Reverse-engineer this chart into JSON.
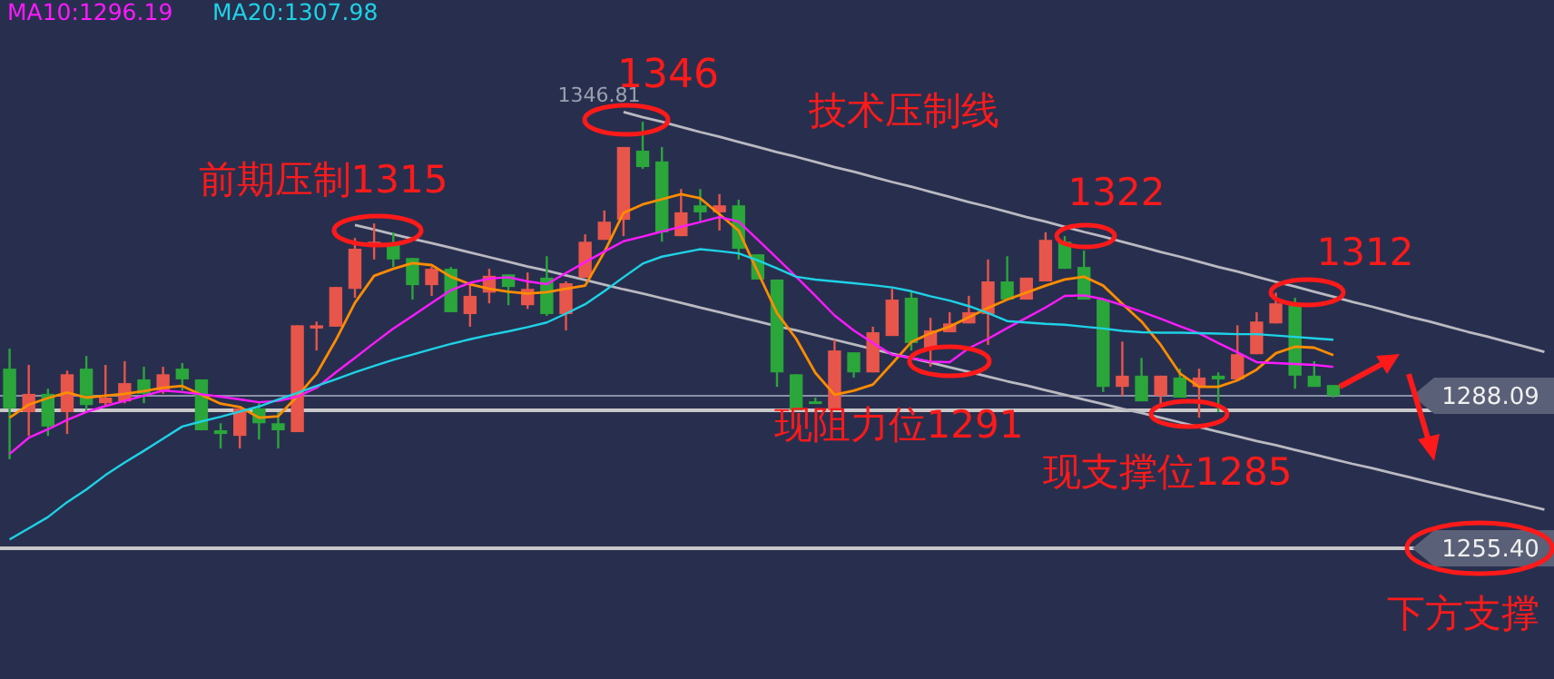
{
  "chart_data": {
    "type": "candlestick",
    "categories": [
      null,
      null,
      null,
      null,
      null,
      null,
      null,
      null,
      null,
      null,
      null,
      null,
      null,
      null,
      null,
      null,
      null,
      null,
      null,
      null,
      null,
      null,
      null,
      null,
      null,
      null,
      null,
      null,
      null,
      null,
      null,
      null,
      null,
      null,
      null,
      null,
      null,
      null,
      null,
      null,
      null,
      null,
      null,
      null,
      null,
      null,
      null,
      null,
      null,
      null,
      null,
      null,
      null,
      null,
      null,
      null,
      null,
      null,
      null,
      null,
      null,
      null,
      null,
      null,
      null,
      null,
      null,
      null,
      null,
      null,
      null,
      null,
      null,
      null,
      null,
      null,
      null,
      null,
      null,
      null,
      null
    ],
    "ohlc": [
      [
        1293.9,
        1298.2,
        1274.5,
        1285.4
      ],
      [
        1284.6,
        1294.7,
        1279.5,
        1288.5
      ],
      [
        1288.5,
        1289.6,
        1279.5,
        1281.5
      ],
      [
        1284.6,
        1293.5,
        1279.9,
        1292.7
      ],
      [
        1293.9,
        1296.6,
        1284.6,
        1286.1
      ],
      [
        1286.5,
        1294.7,
        1286.1,
        1287.7
      ],
      [
        1286.9,
        1295.5,
        1286.5,
        1290.8
      ],
      [
        1291.6,
        1294.3,
        1286.5,
        1288.5
      ],
      [
        1289.2,
        1294.3,
        1288.5,
        1292.7
      ],
      [
        1293.9,
        1295.1,
        1289.2,
        1291.6
      ],
      [
        1291.6,
        1291.6,
        1280.7,
        1280.7
      ],
      [
        1280.7,
        1282.2,
        1276.8,
        1279.9
      ],
      [
        1279.5,
        1285.4,
        1276.8,
        1285.4
      ],
      [
        1285.4,
        1286.5,
        1278.7,
        1282.2
      ],
      [
        1282.2,
        1284.6,
        1276.8,
        1280.7
      ],
      [
        1280.3,
        1303.2,
        1280.3,
        1303.2
      ],
      [
        1302.5,
        1304.0,
        1297.8,
        1303.2
      ],
      [
        1302.9,
        1311.4,
        1302.9,
        1311.4
      ],
      [
        1311.0,
        1321.9,
        1309.1,
        1319.6
      ],
      [
        1320.0,
        1325.0,
        1317.3,
        1321.1
      ],
      [
        1320.4,
        1323.1,
        1315.7,
        1317.3
      ],
      [
        1317.6,
        1317.6,
        1308.7,
        1311.8
      ],
      [
        1311.8,
        1315.7,
        1309.5,
        1315.3
      ],
      [
        1315.3,
        1315.7,
        1306.0,
        1306.0
      ],
      [
        1305.6,
        1311.8,
        1302.9,
        1309.5
      ],
      [
        1310.2,
        1315.3,
        1307.9,
        1313.8
      ],
      [
        1314.1,
        1314.1,
        1307.5,
        1311.4
      ],
      [
        1307.5,
        1314.5,
        1306.7,
        1311.0
      ],
      [
        1313.4,
        1318.0,
        1305.2,
        1305.6
      ],
      [
        1305.6,
        1312.6,
        1302.1,
        1312.2
      ],
      [
        1313.4,
        1322.7,
        1313.4,
        1321.1
      ],
      [
        1321.5,
        1327.8,
        1321.5,
        1325.4
      ],
      [
        1325.8,
        1341.4,
        1322.3,
        1341.4
      ],
      [
        1340.6,
        1346.81,
        1336.7,
        1337.1
      ],
      [
        1338.3,
        1341.4,
        1321.1,
        1323.1
      ],
      [
        1322.3,
        1332.4,
        1322.3,
        1327.4
      ],
      [
        1328.9,
        1332.4,
        1325.4,
        1327.4
      ],
      [
        1327.4,
        1331.3,
        1323.5,
        1328.9
      ],
      [
        1328.9,
        1330.1,
        1317.3,
        1319.6
      ],
      [
        1318.4,
        1318.4,
        1313.0,
        1313.0
      ],
      [
        1313.0,
        1313.0,
        1290.0,
        1293.1
      ],
      [
        1292.7,
        1292.7,
        1285.0,
        1285.0
      ],
      [
        1286.9,
        1287.7,
        1286.5,
        1286.5
      ],
      [
        1285.0,
        1300.1,
        1285.0,
        1297.8
      ],
      [
        1297.4,
        1297.4,
        1292.0,
        1293.1
      ],
      [
        1293.1,
        1302.9,
        1293.1,
        1301.7
      ],
      [
        1300.9,
        1311.0,
        1300.9,
        1308.7
      ],
      [
        1309.1,
        1310.6,
        1297.8,
        1299.4
      ],
      [
        1298.2,
        1304.8,
        1294.3,
        1302.1
      ],
      [
        1301.7,
        1306.0,
        1301.7,
        1303.6
      ],
      [
        1303.6,
        1309.5,
        1303.6,
        1306.0
      ],
      [
        1305.6,
        1317.3,
        1299.0,
        1312.6
      ],
      [
        1312.6,
        1318.0,
        1308.7,
        1308.7
      ],
      [
        1308.7,
        1313.4,
        1308.7,
        1313.4
      ],
      [
        1312.6,
        1323.1,
        1312.6,
        1321.5
      ],
      [
        1321.1,
        1322.3,
        1315.3,
        1315.3
      ],
      [
        1315.7,
        1319.2,
        1308.7,
        1308.7
      ],
      [
        1308.7,
        1308.7,
        1288.9,
        1290.0
      ],
      [
        1290.0,
        1299.7,
        1288.1,
        1292.4
      ],
      [
        1292.4,
        1296.2,
        1286.9,
        1286.9
      ],
      [
        1288.1,
        1292.4,
        1286.1,
        1292.4
      ],
      [
        1292.0,
        1293.9,
        1287.7,
        1287.7
      ],
      [
        1290.0,
        1293.9,
        1283.4,
        1292.0
      ],
      [
        1292.4,
        1293.1,
        1284.6,
        1291.6
      ],
      [
        1291.6,
        1303.2,
        1291.6,
        1297.0
      ],
      [
        1297.0,
        1306.0,
        1297.0,
        1304.0
      ],
      [
        1303.6,
        1310.2,
        1303.6,
        1307.9
      ],
      [
        1307.9,
        1309.1,
        1289.6,
        1292.4
      ],
      [
        1292.4,
        1295.5,
        1290.0,
        1290.0
      ],
      [
        1290.4,
        1290.4,
        1287.7,
        1288.1
      ],
      null,
      null,
      null,
      null,
      null,
      null,
      null,
      null,
      null,
      null,
      null
    ],
    "colors": [
      "#2aa63a",
      "#e8554b",
      "#2aa63a",
      "#e8554b",
      "#2aa63a",
      "#e8554b",
      "#e8554b",
      "#2aa63a",
      "#e8554b",
      "#2aa63a",
      "#2aa63a",
      "#2aa63a",
      "#e8554b",
      "#2aa63a",
      "#2aa63a",
      "#e8554b",
      "#e8554b",
      "#e8554b",
      "#e8554b",
      "#e8554b",
      "#2aa63a",
      "#2aa63a",
      "#e8554b",
      "#2aa63a",
      "#e8554b",
      "#e8554b",
      "#2aa63a",
      "#e8554b",
      "#2aa63a",
      "#e8554b",
      "#e8554b",
      "#e8554b",
      "#e8554b",
      "#2aa63a",
      "#2aa63a",
      "#e8554b",
      "#2aa63a",
      "#e8554b",
      "#2aa63a",
      "#2aa63a",
      "#2aa63a",
      "#2aa63a",
      "#2aa63a",
      "#e8554b",
      "#2aa63a",
      "#e8554b",
      "#e8554b",
      "#2aa63a",
      "#e8554b",
      "#e8554b",
      "#e8554b",
      "#e8554b",
      "#2aa63a",
      "#e8554b",
      "#e8554b",
      "#2aa63a",
      "#2aa63a",
      "#2aa63a",
      "#e8554b",
      "#2aa63a",
      "#e8554b",
      "#2aa63a",
      "#e8554b",
      "#2aa63a",
      "#e8554b",
      "#e8554b",
      "#e8554b",
      "#2aa63a",
      "#2aa63a",
      "#2aa63a",
      null,
      null,
      null,
      null,
      null,
      null,
      null,
      null,
      null,
      null,
      null
    ],
    "series": [
      {
        "type": "line",
        "color": "#ff8c00",
        "values": [
          1283.4,
          1286.2,
          1287.6,
          1288.8,
          1287.7,
          1288.1,
          1288.5,
          1289.1,
          1289.8,
          1290.2,
          1288.3,
          1286.4,
          1285.7,
          1283.4,
          1283.7,
          1288.0,
          1292.8,
          1300.0,
          1308.0,
          1313.8,
          1315.3,
          1316.5,
          1316.1,
          1313.6,
          1312.0,
          1311.0,
          1310.4,
          1310.0,
          1310.3,
          1311.0,
          1311.7,
          1318.9,
          1327.3,
          1329.1,
          1330.2,
          1331.3,
          1330.4,
          1327.0,
          1323.5,
          1314.6,
          1305.8,
          1300.3,
          1293.0,
          1288.3,
          1289.2,
          1290.5,
          1295.0,
          1299.6,
          1301.5,
          1302.9,
          1304.9,
          1306.9,
          1308.7,
          1310.2,
          1311.7,
          1313.0,
          1313.6,
          1311.7,
          1307.8,
          1304.0,
          1299.0,
          1292.9,
          1290.0,
          1290.0,
          1291.4,
          1293.7,
          1297.2,
          1298.6,
          1298.4,
          1296.8,
          null,
          null,
          null,
          null,
          null,
          null,
          null,
          null,
          null,
          null,
          null
        ]
      },
      {
        "type": "line",
        "name": "MA10:1296.19",
        "color": "#ff1aff",
        "values": [
          1275.6,
          1279.1,
          1280.9,
          1282.9,
          1284.6,
          1285.9,
          1287.0,
          1288.1,
          1289.2,
          1288.9,
          1288.4,
          1287.9,
          1287.3,
          1286.7,
          1287.0,
          1287.9,
          1289.8,
          1293.1,
          1296.2,
          1299.4,
          1302.5,
          1305.2,
          1308.0,
          1310.7,
          1312.3,
          1313.2,
          1313.5,
          1312.6,
          1312.0,
          1314.4,
          1316.7,
          1319.0,
          1321.2,
          1322.2,
          1323.3,
          1324.3,
          1325.3,
          1326.4,
          1325.4,
          1321.5,
          1317.6,
          1313.6,
          1309.5,
          1305.3,
          1302.1,
          1299.4,
          1296.9,
          1296.2,
          1295.4,
          1295.3,
          1298.3,
          1300.3,
          1302.6,
          1304.8,
          1307.0,
          1309.5,
          1309.6,
          1308.8,
          1307.5,
          1306.1,
          1304.6,
          1303.0,
          1301.5,
          1299.4,
          1297.4,
          1295.3,
          1295.1,
          1294.9,
          1294.7,
          1294.3,
          null,
          null,
          null,
          null,
          null,
          null,
          null,
          null,
          null,
          null,
          null
        ]
      },
      {
        "type": "line",
        "name": "MA20:1307.98",
        "color": "#1ed2e6",
        "values": [
          1257.3,
          1259.7,
          1262.1,
          1265.3,
          1268.0,
          1271.1,
          1273.8,
          1276.3,
          1278.9,
          1281.5,
          1282.6,
          1283.6,
          1284.7,
          1285.8,
          1287.3,
          1288.7,
          1290.2,
          1291.6,
          1293.1,
          1294.5,
          1295.8,
          1296.9,
          1298.1,
          1299.2,
          1300.2,
          1301.1,
          1301.9,
          1302.8,
          1303.8,
          1305.7,
          1307.7,
          1310.5,
          1313.5,
          1316.4,
          1317.9,
          1318.7,
          1319.5,
          1319.1,
          1318.6,
          1317.1,
          1315.4,
          1313.6,
          1313.0,
          1312.6,
          1312.2,
          1311.8,
          1311.3,
          1310.5,
          1309.4,
          1308.5,
          1307.3,
          1305.8,
          1304.1,
          1303.8,
          1303.5,
          1303.3,
          1302.9,
          1302.5,
          1302.0,
          1301.7,
          1301.6,
          1301.6,
          1301.5,
          1301.4,
          1301.3,
          1301.3,
          1301.0,
          1300.7,
          1300.4,
          1300.1,
          null,
          null,
          null,
          null,
          null,
          null,
          null,
          null,
          null,
          null,
          null
        ]
      },
      {
        "type": "line",
        "color": "#b9b9c0",
        "values": [
          null,
          null,
          null,
          null,
          null,
          null,
          null,
          null,
          null,
          null,
          null,
          null,
          null,
          null,
          null,
          null,
          null,
          null,
          null,
          null,
          null,
          null,
          null,
          null,
          null,
          null,
          null,
          null,
          null,
          null,
          null,
          null,
          1348.9,
          1347.8,
          1346.8,
          1345.7,
          1344.6,
          1343.6,
          1342.5,
          1341.4,
          1340.3,
          1339.3,
          1338.2,
          1337.1,
          1336.1,
          1335.0,
          1333.9,
          1332.9,
          1331.8,
          1330.7,
          1329.6,
          1328.6,
          1327.5,
          1326.4,
          1325.4,
          1324.3,
          1323.2,
          1322.2,
          1321.1,
          1320.0,
          1318.9,
          1317.9,
          1316.8,
          1315.7,
          1314.7,
          1313.6,
          1312.5,
          1311.5,
          1310.4,
          1309.3,
          1308.2,
          1307.2,
          1306.1,
          1305.0,
          1304.0,
          1302.9,
          1301.8,
          1300.8,
          1299.7,
          1298.6,
          1297.5
        ]
      },
      {
        "type": "line",
        "color": "#b9b9c0",
        "values": [
          null,
          null,
          null,
          null,
          null,
          null,
          null,
          null,
          null,
          null,
          null,
          null,
          null,
          null,
          null,
          null,
          null,
          null,
          1324.7,
          1323.7,
          1322.7,
          1321.7,
          1320.8,
          1319.8,
          1318.8,
          1317.8,
          1316.8,
          1315.8,
          1314.9,
          1313.9,
          1312.9,
          1311.9,
          1310.9,
          1310.0,
          1309.0,
          1308.0,
          1307.0,
          1306.0,
          1305.0,
          1304.0,
          1303.0,
          1302.1,
          1301.1,
          1300.1,
          1299.1,
          1298.1,
          1297.1,
          1296.2,
          1295.2,
          1294.2,
          1293.2,
          1292.2,
          1291.2,
          1290.3,
          1289.3,
          1288.3,
          1287.3,
          1286.3,
          1285.3,
          1284.4,
          1283.4,
          1282.4,
          1281.4,
          1280.4,
          1279.4,
          1278.4,
          1277.5,
          1276.5,
          1275.5,
          1274.5,
          1273.5,
          1272.6,
          1271.6,
          1270.6,
          1269.6,
          1268.6,
          1267.6,
          1266.6,
          1265.7,
          1264.7,
          1263.7
        ]
      }
    ],
    "ylim": [
      1227.4,
      1372.9
    ],
    "yticks": [
      {
        "value": 1255.4,
        "label": "1255.40"
      },
      {
        "value": 1288.09,
        "label": "1288.09"
      }
    ],
    "ref_lines": [
      {
        "axis": "y",
        "value": 1285,
        "color": "#c8c8c8"
      },
      {
        "axis": "y",
        "value": 1288.09,
        "color": "#8a90a8"
      },
      {
        "axis": "y",
        "value": 1255.4,
        "color": "#c8c8c8"
      }
    ],
    "annotations": [
      "1346.81",
      "1346",
      "技术压制线",
      "前期压制1315",
      "1322",
      "1312",
      "现阻力位1291",
      "现支撑位1285",
      "下方支撑"
    ]
  }
}
